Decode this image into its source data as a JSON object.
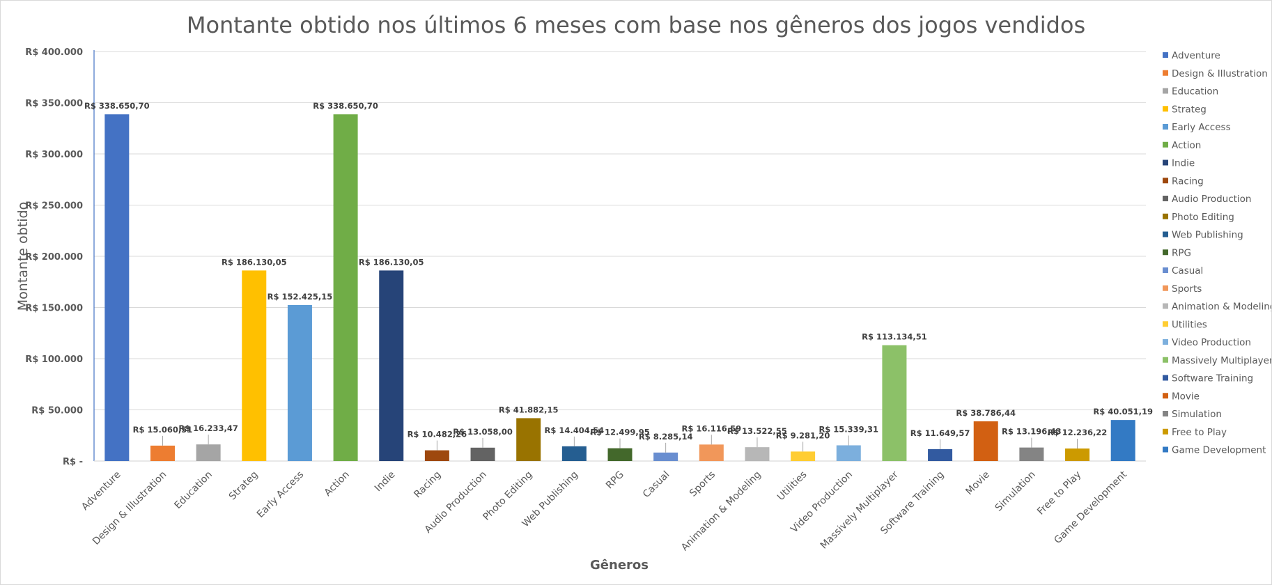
{
  "chart_data": {
    "type": "bar",
    "title": "Montante obtido nos últimos 6 meses com base nos gêneros dos jogos vendidos",
    "xlabel": "Gêneros",
    "ylabel": "Montante obtido",
    "ylim": [
      0,
      400000
    ],
    "y_ticks": [
      0,
      50000,
      100000,
      150000,
      200000,
      250000,
      300000,
      350000,
      400000
    ],
    "y_tick_labels": [
      "R$ -",
      "R$ 50.000",
      "R$ 100.000",
      "R$ 150.000",
      "R$ 200.000",
      "R$ 250.000",
      "R$ 300.000",
      "R$ 350.000",
      "R$ 400.000"
    ],
    "grid": true,
    "legend_position": "right",
    "categories": [
      "Adventure",
      "Design & Illustration",
      "Education",
      "Strateg",
      "Early Access",
      "Action",
      "Indie",
      "Racing",
      "Audio Production",
      "Photo Editing",
      "Web Publishing",
      "RPG",
      "Casual",
      "Sports",
      "Animation & Modeling",
      "Utilities",
      "Video Production",
      "Massively Multiplayer",
      "Software Training",
      "Movie",
      "Simulation",
      "Free to Play",
      "Game Development"
    ],
    "values": [
      338650.7,
      15060.51,
      16233.47,
      186130.05,
      152425.15,
      338650.7,
      186130.05,
      10482.26,
      13058.0,
      41882.15,
      14404.54,
      12499.95,
      8285.14,
      16116.59,
      13522.55,
      9281.2,
      15339.31,
      113134.51,
      11649.57,
      38786.44,
      13196.43,
      12236.22,
      40051.19
    ],
    "data_labels": [
      "R$ 338.650,70",
      "R$ 15.060,51",
      "R$ 16.233,47",
      "R$ 186.130,05",
      "R$ 152.425,15",
      "R$ 338.650,70",
      "R$ 186.130,05",
      "R$ 10.482,26",
      "R$ 13.058,00",
      "R$ 41.882,15",
      "R$ 14.404,54",
      "R$ 12.499,95",
      "R$ 8.285,14",
      "R$ 16.116,59",
      "R$ 13.522,55",
      "R$ 9.281,20",
      "R$ 15.339,31",
      "R$ 113.134,51",
      "R$ 11.649,57",
      "R$ 38.786,44",
      "R$ 13.196,43",
      "R$ 12.236,22",
      "R$ 40.051,19"
    ],
    "colors": [
      "#4472c4",
      "#ed7d31",
      "#a5a5a5",
      "#ffc000",
      "#5b9bd5",
      "#70ad47",
      "#264478",
      "#9e480e",
      "#636363",
      "#997300",
      "#255e91",
      "#43682b",
      "#698ed0",
      "#f1975a",
      "#b7b7b7",
      "#ffcd33",
      "#7cafdd",
      "#8cc168",
      "#325aa0",
      "#d26012",
      "#848484",
      "#cc9a00",
      "#337ac4"
    ]
  }
}
